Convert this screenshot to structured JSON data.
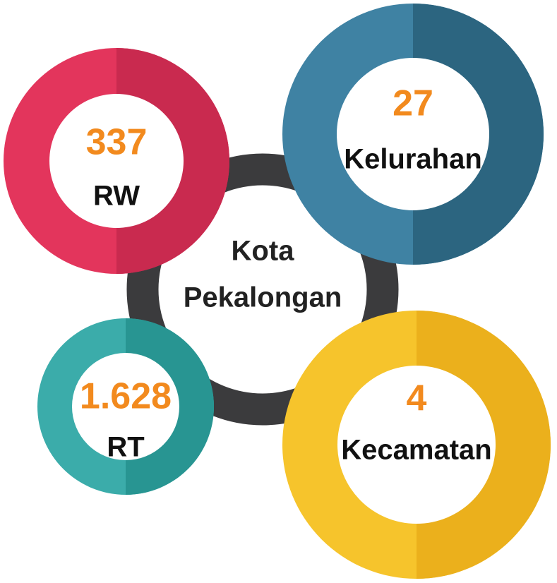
{
  "center": {
    "lines": [
      "Kota",
      "Pekalongan"
    ]
  },
  "items": [
    {
      "value": "337",
      "label": "RW"
    },
    {
      "value": "27",
      "label": "Kelurahan"
    },
    {
      "value": "1.628",
      "label": "RT"
    },
    {
      "value": "4",
      "label": "Kecamatan"
    }
  ]
}
